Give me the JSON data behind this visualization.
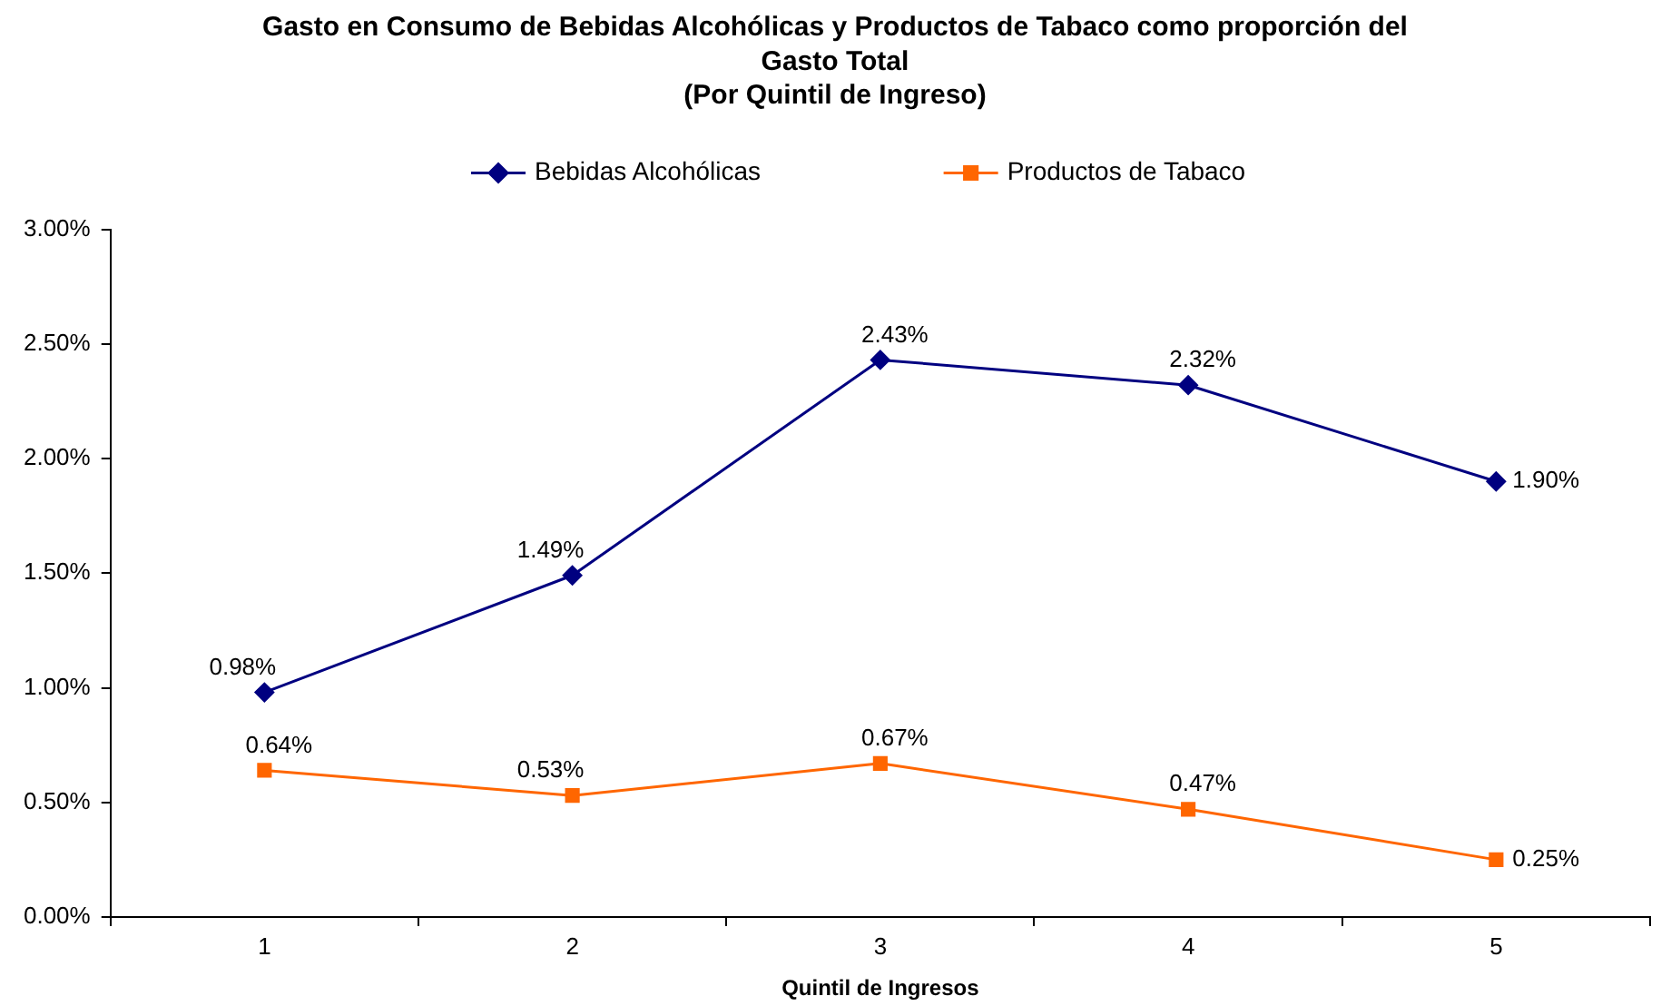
{
  "chart_data": {
    "type": "line",
    "title": "Gasto en Consumo de Bebidas Alcohólicas y Productos de Tabaco como proporción del Gasto Total",
    "subtitle": "(Por Quintil de Ingreso)",
    "xlabel": "Quintil de Ingresos",
    "categories": [
      "1",
      "2",
      "3",
      "4",
      "5"
    ],
    "series": [
      {
        "name": "Bebidas Alcohólicas",
        "color": "#000080",
        "marker": "diamond",
        "values": [
          0.98,
          1.49,
          2.43,
          2.32,
          1.9
        ],
        "value_labels": [
          "0.98%",
          "1.49%",
          "2.43%",
          "2.32%",
          "1.90%"
        ]
      },
      {
        "name": "Productos de Tabaco",
        "color": "#ff6600",
        "marker": "square",
        "values": [
          0.64,
          0.53,
          0.67,
          0.47,
          0.25
        ],
        "value_labels": [
          "0.64%",
          "0.53%",
          "0.67%",
          "0.47%",
          "0.25%"
        ]
      }
    ],
    "ylim": [
      0,
      3
    ],
    "yticks": [
      {
        "value": 0,
        "label": "0.00%"
      },
      {
        "value": 0.5,
        "label": "0.50%"
      },
      {
        "value": 1,
        "label": "1.00%"
      },
      {
        "value": 1.5,
        "label": "1.50%"
      },
      {
        "value": 2,
        "label": "2.00%"
      },
      {
        "value": 2.5,
        "label": "2.50%"
      },
      {
        "value": 3,
        "label": "3.00%"
      }
    ],
    "legend": "top"
  }
}
